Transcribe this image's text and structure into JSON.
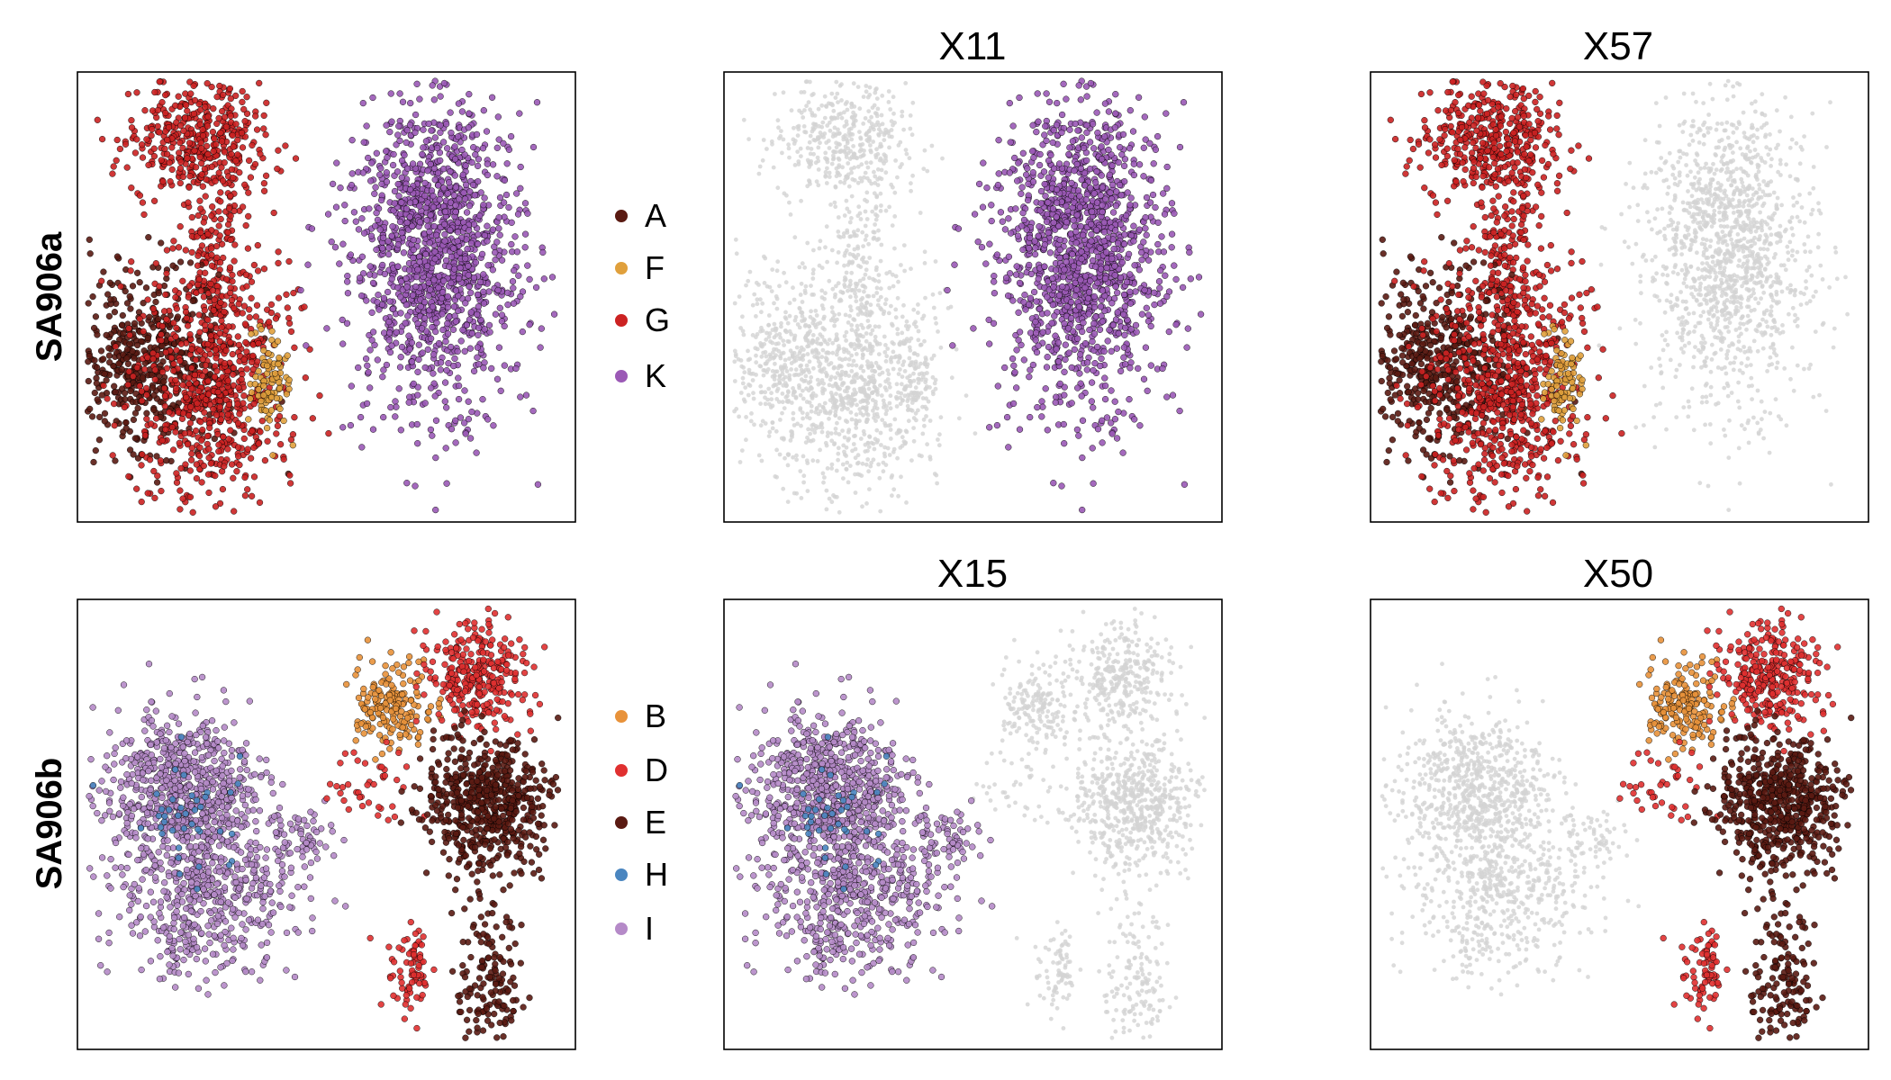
{
  "colors": {
    "background_cells": "#d3d3d3",
    "outline": "#000000",
    "A": "#5a1a12",
    "F": "#e0a03c",
    "G": "#cc2222",
    "K": "#9b59b6",
    "B": "#e8923a",
    "D": "#e03030",
    "E": "#5a1a12",
    "H": "#4a86c0",
    "I": "#b58ac8"
  },
  "chart_data": [
    {
      "type": "scatter",
      "sample": "SA906a",
      "title": "",
      "row_label": "SA906a",
      "highlight": [
        "A",
        "F",
        "G",
        "K"
      ],
      "legend": [
        "A",
        "F",
        "G",
        "K"
      ]
    },
    {
      "type": "scatter",
      "sample": "SA906a",
      "title": "X11",
      "highlight": [
        "K"
      ]
    },
    {
      "type": "scatter",
      "sample": "SA906a",
      "title": "X57",
      "highlight": [
        "A",
        "F",
        "G"
      ]
    },
    {
      "type": "scatter",
      "sample": "SA906b",
      "title": "",
      "row_label": "SA906b",
      "highlight": [
        "B",
        "D",
        "E",
        "H",
        "I"
      ],
      "legend": [
        "B",
        "D",
        "E",
        "H",
        "I"
      ]
    },
    {
      "type": "scatter",
      "sample": "SA906b",
      "title": "X15",
      "highlight": [
        "H",
        "I"
      ]
    },
    {
      "type": "scatter",
      "sample": "SA906b",
      "title": "X50",
      "highlight": [
        "B",
        "D",
        "E"
      ]
    }
  ],
  "row_labels": [
    "SA906a",
    "SA906b"
  ],
  "legends": {
    "top": [
      "A",
      "F",
      "G",
      "K"
    ],
    "bottom": [
      "B",
      "D",
      "E",
      "H",
      "I"
    ]
  }
}
